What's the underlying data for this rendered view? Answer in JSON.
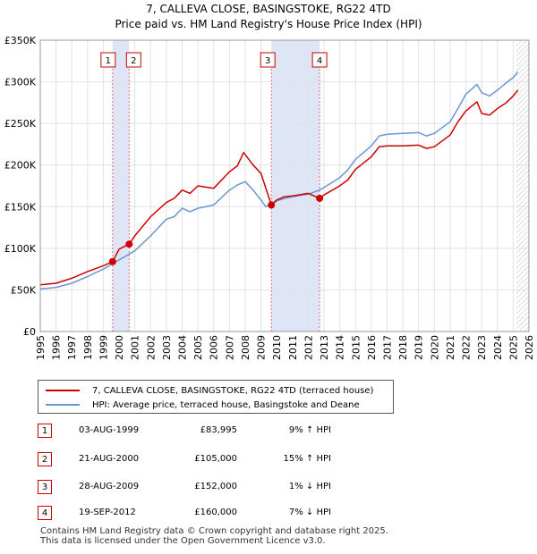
{
  "title_line1": "7, CALLEVA CLOSE, BASINGSTOKE, RG22 4TD",
  "title_line2": "Price paid vs. HM Land Registry's House Price Index (HPI)",
  "legend": {
    "property_label": "7, CALLEVA CLOSE, BASINGSTOKE, RG22 4TD (terraced house)",
    "hpi_label": "HPI: Average price, terraced house, Basingstoke and Deane",
    "property_color": "#cc0000",
    "hpi_color": "#6a97d0"
  },
  "transactions": [
    {
      "num": "1",
      "date": "03-AUG-1999",
      "price": "£83,995",
      "hpi": "9% ↑ HPI"
    },
    {
      "num": "2",
      "date": "21-AUG-2000",
      "price": "£105,000",
      "hpi": "15% ↑ HPI"
    },
    {
      "num": "3",
      "date": "28-AUG-2009",
      "price": "£152,000",
      "hpi": "1% ↓ HPI"
    },
    {
      "num": "4",
      "date": "19-SEP-2012",
      "price": "£160,000",
      "hpi": "7% ↓ HPI"
    }
  ],
  "footer_line1": "Contains HM Land Registry data © Crown copyright and database right 2025.",
  "footer_line2": "This data is licensed under the Open Government Licence v3.0.",
  "chart_data": {
    "type": "line",
    "title": "7, CALLEVA CLOSE, BASINGSTOKE, RG22 4TD",
    "subtitle": "Price paid vs. HM Land Registry's House Price Index (HPI)",
    "xlabel": "",
    "ylabel": "",
    "xlim": [
      1995,
      2026
    ],
    "ylim": [
      0,
      350000
    ],
    "yticks": [
      0,
      50000,
      100000,
      150000,
      200000,
      250000,
      300000,
      350000
    ],
    "ytick_labels": [
      "£0",
      "£50K",
      "£100K",
      "£150K",
      "£200K",
      "£250K",
      "£300K",
      "£350K"
    ],
    "xticks": [
      "1995",
      "1996",
      "1997",
      "1998",
      "1999",
      "2000",
      "2001",
      "2002",
      "2003",
      "2004",
      "2005",
      "2006",
      "2007",
      "2008",
      "2009",
      "2010",
      "2011",
      "2012",
      "2013",
      "2014",
      "2015",
      "2016",
      "2017",
      "2018",
      "2019",
      "2020",
      "2021",
      "2022",
      "2023",
      "2024",
      "2025",
      "2026"
    ],
    "grid": true,
    "shaded_ranges": [
      [
        1999.59,
        2000.64
      ],
      [
        2009.66,
        2012.72
      ]
    ],
    "future_hatch_from": 2025.2,
    "sale_markers": [
      {
        "label": "1",
        "x": 1999.59,
        "y": 83995
      },
      {
        "label": "2",
        "x": 2000.64,
        "y": 105000
      },
      {
        "label": "3",
        "x": 2009.66,
        "y": 152000
      },
      {
        "label": "4",
        "x": 2012.72,
        "y": 160000
      }
    ],
    "series": [
      {
        "name": "7, CALLEVA CLOSE, BASINGSTOKE, RG22 4TD (terraced house)",
        "color": "#cc0000",
        "x": [
          1995,
          1996,
          1997,
          1998,
          1999,
          1999.59,
          2000,
          2000.64,
          2001,
          2002,
          2003,
          2003.5,
          2004,
          2004.5,
          2005,
          2006,
          2007,
          2007.5,
          2007.9,
          2008.5,
          2009,
          2009.66,
          2010,
          2010.5,
          2011,
          2012,
          2012.72,
          2013,
          2014,
          2014.5,
          2015,
          2016,
          2016.5,
          2017,
          2018,
          2019,
          2019.5,
          2020,
          2021,
          2021.5,
          2022,
          2022.7,
          2023,
          2023.5,
          2024,
          2024.5,
          2025,
          2025.3
        ],
        "values": [
          56000,
          58000,
          64000,
          72000,
          79000,
          83995,
          99000,
          105000,
          115000,
          138000,
          155000,
          160000,
          170000,
          166000,
          175000,
          172000,
          192000,
          199000,
          215000,
          200000,
          190000,
          152000,
          158000,
          162000,
          163000,
          166000,
          160000,
          164000,
          175000,
          182000,
          195000,
          210000,
          222000,
          223000,
          223000,
          224000,
          220000,
          222000,
          236000,
          252000,
          265000,
          276000,
          262000,
          260000,
          268000,
          274000,
          283000,
          290000
        ]
      },
      {
        "name": "HPI: Average price, terraced house, Basingstoke and Deane",
        "color": "#6a97d0",
        "x": [
          1995,
          1996,
          1997,
          1998,
          1999,
          2000,
          2001,
          2002,
          2003,
          2003.5,
          2004,
          2004.5,
          2005,
          2006,
          2007,
          2007.5,
          2008,
          2008.5,
          2009,
          2009.3,
          2009.66,
          2010,
          2010.5,
          2011,
          2012,
          2012.72,
          2013,
          2014,
          2014.5,
          2015,
          2016,
          2016.5,
          2017,
          2018,
          2019,
          2019.5,
          2020,
          2021,
          2021.5,
          2022,
          2022.7,
          2023,
          2023.5,
          2024,
          2024.5,
          2025,
          2025.3
        ],
        "values": [
          51000,
          53000,
          58000,
          66000,
          75000,
          86000,
          97000,
          115000,
          135000,
          138000,
          148000,
          144000,
          148000,
          152000,
          170000,
          176000,
          180000,
          170000,
          158000,
          150000,
          153000,
          157000,
          160000,
          162000,
          165000,
          170000,
          173000,
          185000,
          194000,
          207000,
          223000,
          235000,
          237000,
          238000,
          239000,
          235000,
          238000,
          252000,
          268000,
          285000,
          297000,
          287000,
          283000,
          290000,
          298000,
          305000,
          312000
        ]
      }
    ]
  }
}
